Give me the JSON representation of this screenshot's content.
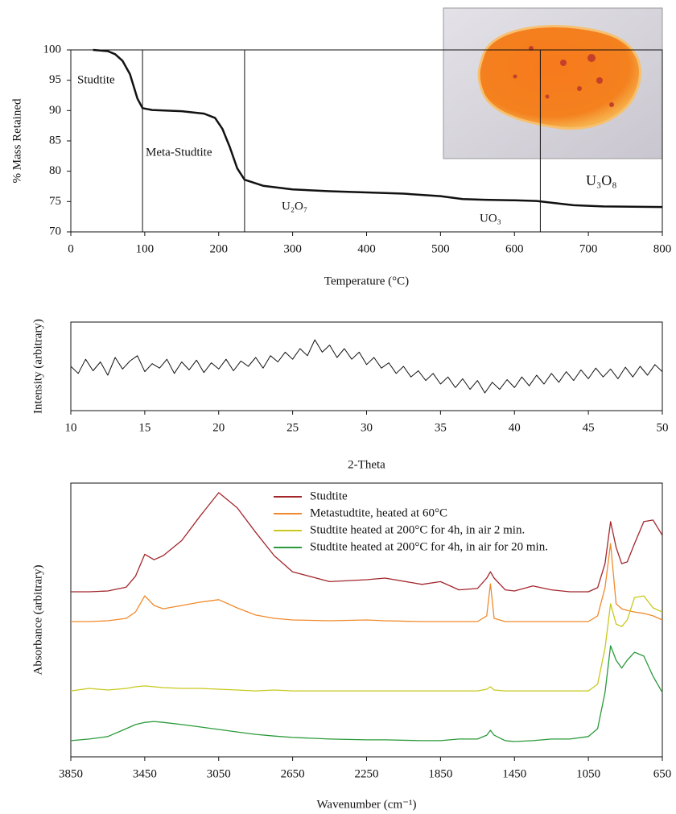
{
  "chart_data": [
    {
      "type": "line",
      "x_label": "Temperature (°C)",
      "y_label": "% Mass Retained",
      "xlim": [
        0,
        800
      ],
      "ylim": [
        70,
        100
      ],
      "xticks": [
        0,
        100,
        200,
        300,
        400,
        500,
        600,
        700,
        800
      ],
      "yticks": [
        70,
        75,
        80,
        85,
        90,
        95,
        100
      ],
      "x": [
        30,
        50,
        60,
        70,
        80,
        90,
        97,
        110,
        150,
        180,
        195,
        205,
        215,
        225,
        235,
        260,
        300,
        350,
        400,
        450,
        500,
        530,
        560,
        600,
        630,
        650,
        680,
        720,
        800
      ],
      "values": [
        100,
        99.8,
        99.3,
        98.2,
        96,
        92,
        90.4,
        90.1,
        89.9,
        89.5,
        88.8,
        87,
        84,
        80.5,
        78.6,
        77.6,
        77.0,
        76.7,
        76.5,
        76.3,
        75.9,
        75.4,
        75.3,
        75.2,
        75.1,
        74.8,
        74.4,
        74.2,
        74.1
      ],
      "color": "#111111",
      "vlines": [
        97,
        235,
        635
      ],
      "annotations": [
        "Studtite",
        "Meta-Studtite",
        "U₂O₇",
        "UO₃",
        "U₃O₈"
      ]
    },
    {
      "type": "line",
      "x_label": "2-Theta",
      "y_label": "Intensity (arbitrary)",
      "xlim": [
        10,
        50
      ],
      "ylim": [
        0,
        100
      ],
      "xticks": [
        10,
        15,
        20,
        25,
        30,
        35,
        40,
        45,
        50
      ],
      "x": [
        10,
        10.5,
        11,
        11.5,
        12,
        12.5,
        13,
        13.5,
        14,
        14.5,
        15,
        15.5,
        16,
        16.5,
        17,
        17.5,
        18,
        18.5,
        19,
        19.5,
        20,
        20.5,
        21,
        21.5,
        22,
        22.5,
        23,
        23.5,
        24,
        24.5,
        25,
        25.5,
        26,
        26.5,
        27,
        27.5,
        28,
        28.5,
        29,
        29.5,
        30,
        30.5,
        31,
        31.5,
        32,
        32.5,
        33,
        33.5,
        34,
        34.5,
        35,
        35.5,
        36,
        36.5,
        37,
        37.5,
        38,
        38.5,
        39,
        39.5,
        40,
        40.5,
        41,
        41.5,
        42,
        42.5,
        43,
        43.5,
        44,
        44.5,
        45,
        45.5,
        46,
        46.5,
        47,
        47.5,
        48,
        48.5,
        49,
        49.5,
        50
      ],
      "values": [
        50,
        42,
        58,
        45,
        55,
        40,
        60,
        47,
        56,
        62,
        44,
        53,
        48,
        58,
        42,
        55,
        46,
        57,
        43,
        54,
        47,
        58,
        45,
        56,
        50,
        60,
        48,
        62,
        55,
        66,
        58,
        70,
        62,
        80,
        66,
        74,
        60,
        70,
        58,
        66,
        52,
        60,
        48,
        54,
        42,
        50,
        38,
        45,
        34,
        42,
        30,
        38,
        26,
        36,
        24,
        34,
        20,
        32,
        24,
        35,
        26,
        38,
        28,
        40,
        30,
        42,
        32,
        44,
        34,
        46,
        36,
        48,
        38,
        47,
        36,
        49,
        38,
        50,
        40,
        52,
        44
      ],
      "color": "#111111"
    },
    {
      "type": "line",
      "x_label": "Wavenumber (cm⁻¹)",
      "y_label": "Absorbance (arbitrary)",
      "xlim": [
        3850,
        650
      ],
      "ylim": [
        0,
        100
      ],
      "xticks": [
        3850,
        3450,
        3050,
        2650,
        2250,
        1850,
        1450,
        1050,
        650
      ],
      "x": [
        3850,
        3750,
        3650,
        3550,
        3500,
        3450,
        3400,
        3350,
        3250,
        3150,
        3050,
        2950,
        2850,
        2750,
        2650,
        2450,
        2250,
        2150,
        1950,
        1850,
        1750,
        1650,
        1600,
        1580,
        1560,
        1500,
        1450,
        1350,
        1250,
        1150,
        1050,
        1000,
        960,
        930,
        900,
        870,
        840,
        800,
        750,
        700,
        650
      ],
      "series": [
        {
          "name": "Studtite",
          "color": "#a3262c",
          "values": [
            60.3,
            60.3,
            60.6,
            62,
            66,
            74,
            72,
            73.5,
            79,
            88,
            96.5,
            91,
            82,
            73.5,
            67.6,
            64,
            64.7,
            65.3,
            63,
            64,
            61,
            61.5,
            65.3,
            67.6,
            65.3,
            61,
            60.6,
            62.4,
            61,
            60.3,
            60.3,
            61.8,
            70.6,
            85.9,
            76.5,
            70.6,
            71.2,
            77.9,
            85.9,
            86.5,
            80.9
          ]
        },
        {
          "name": "Metastudtite, heated at 60°C",
          "color": "#f08a2c",
          "values": [
            49.4,
            49.4,
            49.7,
            50.6,
            52.9,
            58.8,
            55.3,
            54.1,
            55.3,
            56.5,
            57.4,
            54.4,
            51.8,
            50.6,
            50,
            49.7,
            50,
            49.7,
            49.4,
            49.4,
            49.4,
            49.4,
            51.5,
            63.2,
            50.6,
            49.4,
            49.4,
            49.4,
            49.4,
            49.4,
            49.4,
            51.5,
            61.8,
            77.9,
            55.9,
            54.1,
            53.5,
            52.9,
            52.4,
            51.5,
            50
          ]
        },
        {
          "name": "Studtite heated at 200°C for 4h, in air 2 min.",
          "color": "#c8c81e",
          "values": [
            24.1,
            25,
            24.4,
            25,
            25.6,
            25.9,
            25.6,
            25.3,
            25,
            25,
            24.7,
            24.4,
            24.1,
            24.4,
            24.1,
            24.1,
            24.1,
            24.1,
            24.1,
            24.1,
            24.1,
            24.1,
            24.7,
            25.6,
            24.4,
            24.1,
            24.1,
            24.1,
            24.1,
            24.1,
            24.1,
            26.5,
            39.7,
            55.9,
            48.5,
            47.6,
            50,
            58.2,
            58.8,
            54.4,
            52.9
          ]
        },
        {
          "name": "Studtite heated at 200°C for 4h, in air for 20 min.",
          "color": "#2a9a3a",
          "values": [
            5.9,
            6.5,
            7.4,
            10.3,
            11.8,
            12.6,
            12.9,
            12.6,
            11.8,
            10.9,
            10,
            9.1,
            8.2,
            7.6,
            7.1,
            6.5,
            6.2,
            6.2,
            5.9,
            5.9,
            6.5,
            6.5,
            7.9,
            9.7,
            7.9,
            5.9,
            5.6,
            5.9,
            6.5,
            6.5,
            7.4,
            10.3,
            23.5,
            40.6,
            35.3,
            32.4,
            35.3,
            38.2,
            36.8,
            29.4,
            23.5
          ]
        }
      ]
    }
  ]
}
